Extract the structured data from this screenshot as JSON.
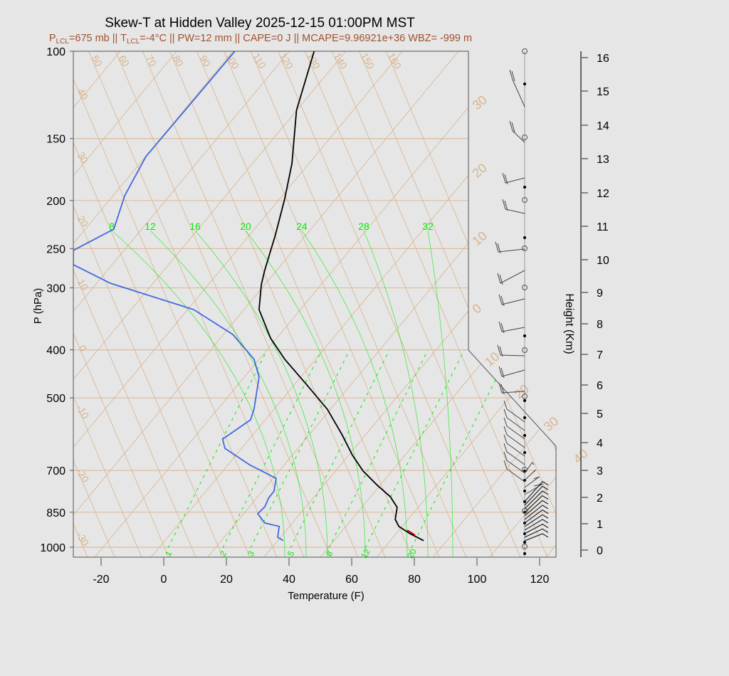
{
  "chart_data": {
    "type": "skew-t",
    "title": "Skew-T at Hidden Valley 2025-12-15 01:00PM MST",
    "subtitle": {
      "p_prefix": "P",
      "p_sub": "LCL",
      "p_rest": "=675 mb || T",
      "t_sub": "LCL",
      "t_rest": "=-4°C || PW=12 mm || CAPE=0 J || MCAPE=9.96921e+36 WBZ= -999 m"
    },
    "xlabel": "Temperature (F)",
    "ylabel": "P (hPa)",
    "y2label": "Height (Km)",
    "x_ticks": [
      -20,
      0,
      20,
      40,
      60,
      80,
      100,
      120
    ],
    "pressure_ticks": [
      100,
      150,
      200,
      250,
      300,
      400,
      500,
      700,
      850,
      1000
    ],
    "height_ticks_km": [
      0,
      1,
      2,
      3,
      4,
      5,
      6,
      7,
      8,
      9,
      10,
      11,
      12,
      13,
      14,
      15,
      16
    ],
    "xlim_F_at_bottom": [
      -28,
      125
    ],
    "ylim_hPa": [
      1048,
      100
    ],
    "isotherm_labels_C": [
      -30,
      -20,
      -10,
      0,
      10,
      20,
      30,
      40
    ],
    "isotherm_label_text": [
      "30",
      "20",
      "10",
      "0",
      "10",
      "20",
      "30",
      "40"
    ],
    "dry_adiabat_labels": [
      -30,
      -20,
      -10,
      0,
      10,
      20,
      30,
      40,
      50,
      60,
      70,
      80,
      90,
      100,
      110,
      120,
      130,
      140,
      150,
      160
    ],
    "moist_adiabat_labels": [
      8,
      12,
      16,
      20,
      24,
      28,
      32
    ],
    "mixing_ratio_labels": [
      1,
      2,
      3,
      5,
      8,
      12,
      20
    ],
    "series": [
      {
        "name": "temperature",
        "color": "#000000",
        "points": [
          [
            100,
            -86.1
          ],
          [
            131.5,
            -76.1
          ],
          [
            168.5,
            -63.4
          ],
          [
            198.8,
            -56.3
          ],
          [
            234.5,
            -49.8
          ],
          [
            276.6,
            -43.8
          ],
          [
            295.5,
            -41.1
          ],
          [
            331.8,
            -35.2
          ],
          [
            378.7,
            -24.0
          ],
          [
            418,
            -13.8
          ],
          [
            469,
            -0.4
          ],
          [
            527,
            13.0
          ],
          [
            591.5,
            24.2
          ],
          [
            653,
            33.3
          ],
          [
            702,
            40.8
          ],
          [
            750,
            49.1
          ],
          [
            791,
            56.3
          ],
          [
            831,
            61.3
          ],
          [
            879,
            63.9
          ],
          [
            908,
            66.9
          ],
          [
            939,
            72.4
          ],
          [
            970,
            78.6
          ]
        ]
      },
      {
        "name": "dewpoint",
        "color": "#4169e1",
        "points": [
          [
            100,
            -111.4
          ],
          [
            163,
            -111.9
          ],
          [
            195.5,
            -108.3
          ],
          [
            228.4,
            -102.9
          ],
          [
            252,
            -110.2
          ],
          [
            269.4,
            -106.4
          ],
          [
            293.6,
            -89.7
          ],
          [
            331.8,
            -56.1
          ],
          [
            372.4,
            -37.0
          ],
          [
            418,
            -23.6
          ],
          [
            454,
            -17.3
          ],
          [
            527,
            -10.4
          ],
          [
            553.6,
            -8.7
          ],
          [
            581.8,
            -10.8
          ],
          [
            605.5,
            -12.5
          ],
          [
            632,
            -9.3
          ],
          [
            681.7,
            2.8
          ],
          [
            726.5,
            15.0
          ],
          [
            770.9,
            17.7
          ],
          [
            796.2,
            17.8
          ],
          [
            827.9,
            18.9
          ],
          [
            856,
            18.5
          ],
          [
            893.6,
            23.2
          ],
          [
            908,
            28.7
          ],
          [
            954.8,
            31.1
          ],
          [
            970,
            33.8
          ]
        ]
      },
      {
        "name": "lcl-segment",
        "color": "#cc0000",
        "points": [
          [
            924,
            70.6
          ],
          [
            945.5,
            74.4
          ]
        ]
      }
    ],
    "colors": {
      "grid": "#d9b38c",
      "green": "#00ee00",
      "temp": "#000000",
      "dew": "#4169e1"
    }
  }
}
